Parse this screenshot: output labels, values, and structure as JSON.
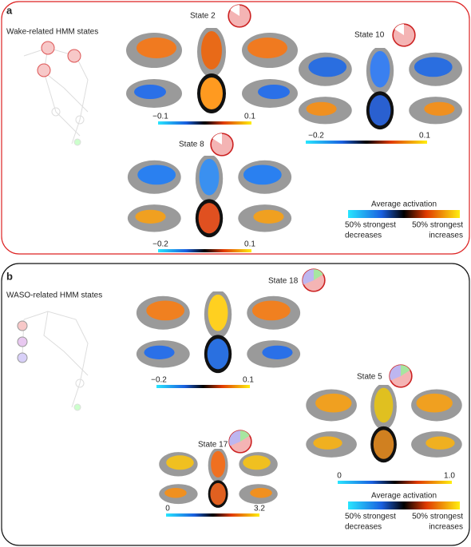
{
  "panels": [
    {
      "label": "a",
      "title": "Wake-related HMM states",
      "states": [
        {
          "name": "State 2",
          "scale": [
            "−0.1",
            "0.1"
          ]
        },
        {
          "name": "State 10",
          "scale": [
            "−0.2",
            "0.1"
          ]
        },
        {
          "name": "State 8",
          "scale": [
            "−0.2",
            "0.1"
          ]
        }
      ],
      "legend": {
        "title": "Average activation",
        "left": [
          "50% strongest",
          "decreases"
        ],
        "right": [
          "50% strongest",
          "increases"
        ]
      }
    },
    {
      "label": "b",
      "title": "WASO-related HMM states",
      "states": [
        {
          "name": "State 18",
          "scale": [
            "−0.2",
            "0.1"
          ]
        },
        {
          "name": "State 5",
          "scale": [
            "0",
            "1.0"
          ]
        },
        {
          "name": "State 17",
          "scale": [
            "0",
            "3.2"
          ]
        }
      ],
      "legend": {
        "title": "Average activation",
        "left": [
          "50% strongest",
          "decreases"
        ],
        "right": [
          "50% strongest",
          "increases"
        ]
      }
    }
  ]
}
